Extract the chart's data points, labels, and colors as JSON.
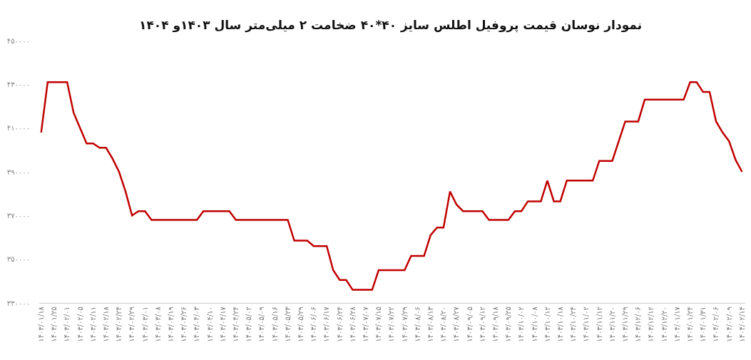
{
  "chart_data": {
    "type": "line",
    "title": "نمودار نوسان قیمت پروفیل اطلس سایز ۴۰*۴۰ ضخامت ۲ میلی‌متر سال ۱۴۰۳و ۱۴۰۴",
    "categories": [
      "۱۴۰۳/۰۱/۱۸",
      null,
      "۱۴۰۳/۰۱/۲۵",
      null,
      "۱۴۰۳/۰۲/۰۱",
      null,
      "۱۴۰۳/۰۲/۰۵",
      null,
      "۱۴۰۳/۰۲/۱۱",
      null,
      "۱۴۰۳/۰۲/۱۸",
      null,
      "۱۴۰۳/۰۲/۲۴",
      null,
      "۱۴۰۳/۰۲/۲۹",
      null,
      "۱۴۰۳/۰۳/۰۱",
      null,
      "۱۴۰۳/۰۳/۰۸",
      null,
      "۱۴۰۳/۰۳/۱۹",
      null,
      "۱۴۰۳/۰۳/۲۶",
      null,
      "۱۴۰۳/۰۴/۰۳",
      null,
      "۱۴۰۳/۰۴/۱۰",
      null,
      "۱۴۰۳/۰۴/۱۷",
      null,
      "۱۴۰۳/۰۴/۲۴",
      null,
      "۱۴۰۳/۰۵/۰۲",
      null,
      "۱۴۰۳/۰۵/۰۹",
      null,
      "۱۴۰۳/۰۵/۱۶",
      null,
      "۱۴۰۳/۰۵/۲۳",
      null,
      "۱۴۰۳/۰۵/۲۹",
      null,
      "۱۴۰۳/۰۶/۰۶",
      null,
      "۱۴۰۳/۰۶/۱۷",
      null,
      "۱۴۰۳/۰۶/۲۴",
      null,
      "۱۴۰۳/۰۶/۲۸",
      null,
      "۱۴۰۳/۰۷/۰۷",
      null,
      "۱۴۰۳/۰۷/۱۵",
      null,
      "۱۴۰۳/۰۷/۲۲",
      null,
      "۱۴۰۳/۰۷/۲۹",
      null,
      "۱۴۰۳/۰۸/۰۶",
      null,
      "۱۴۰۳/۰۸/۱۳",
      null,
      "۱۴۰۳/۰۸/۲۰",
      null,
      "۱۴۰۳/۰۸/۲۷",
      null,
      "۱۴۰۳/۰۹/۰۵",
      null,
      "۱۴۰۳/۰۹/۱۲",
      null,
      "۱۴۰۳/۰۹/۱۸",
      null,
      "۱۴۰۳/۰۹/۲۵",
      null,
      "۱۴۰۳/۱۰/۰۲",
      null,
      "۱۴۰۳/۱۰/۰۸",
      null,
      "۱۴۰۳/۱۰/۱۲",
      null,
      "۱۴۰۳/۱۰/۱۸",
      null,
      "۱۴۰۳/۱۰/۲۴",
      null,
      "۱۴۰۳/۱۱/۰۲",
      null,
      "۱۴۰۳/۱۱/۱۲",
      null,
      "۱۴۰۳/۱۱/۲۰",
      null,
      "۱۴۰۳/۱۱/۲۹",
      null,
      "۱۴۰۳/۱۲/۰۶",
      null,
      "۱۴۰۳/۱۲/۱۲",
      null,
      "۱۴۰۳/۱۲/۲۰",
      null,
      "۱۴۰۴/۰۱/۱۷",
      null,
      "۱۴۰۴/۰۱/۲۴",
      null,
      "۱۴۰۴/۰۱/۳۱",
      null,
      "۱۴۰۴/۰۲/۰۶",
      null,
      "۱۴۰۴/۰۲/۰۹",
      null,
      "۱۴۰۴/۰۲/۱۴"
    ],
    "series": [
      {
        "color": "#c00000",
        "values": [
          408000,
          431000,
          431000,
          431000,
          431000,
          417000,
          410000,
          403000,
          403000,
          401000,
          401000,
          396000,
          390000,
          381000,
          370000,
          372000,
          372000,
          368000,
          368000,
          368000,
          368000,
          368000,
          368000,
          368000,
          368000,
          372000,
          372000,
          372000,
          372000,
          372000,
          368000,
          368000,
          368000,
          368000,
          368000,
          368000,
          368000,
          368000,
          368000,
          358500,
          358500,
          358500,
          356000,
          356000,
          356000,
          345000,
          340500,
          340500,
          336000,
          336000,
          336000,
          336000,
          345000,
          345000,
          345000,
          345000,
          345000,
          351500,
          351500,
          351500,
          361000,
          364500,
          364500,
          381000,
          375000,
          372000,
          372000,
          372000,
          372000,
          368000,
          368000,
          368000,
          368000,
          372000,
          372000,
          376500,
          376500,
          376500,
          386000,
          376500,
          376500,
          386000,
          386000,
          386000,
          386000,
          386000,
          395000,
          395000,
          395000,
          404000,
          413000,
          413000,
          413000,
          423000,
          423000,
          423000,
          423000,
          423000,
          423000,
          423000,
          431000,
          431000,
          426500,
          426500,
          413000,
          408000,
          404000,
          395500,
          390000
        ]
      }
    ],
    "ylim": [
      330000,
      450000
    ],
    "yticks": [
      {
        "value": 330000,
        "label": "۳۳۰۰۰۰"
      },
      {
        "value": 350000,
        "label": "۳۵۰۰۰۰"
      },
      {
        "value": 370000,
        "label": "۳۷۰۰۰۰"
      },
      {
        "value": 390000,
        "label": "۳۹۰۰۰۰"
      },
      {
        "value": 410000,
        "label": "۴۱۰۰۰۰"
      },
      {
        "value": 430000,
        "label": "۴۳۰۰۰۰"
      },
      {
        "value": 450000,
        "label": "۴۵۰۰۰۰"
      }
    ],
    "line_style": "solid"
  }
}
